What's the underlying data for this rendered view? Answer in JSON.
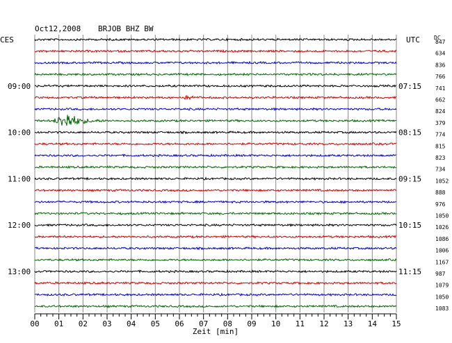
{
  "header": {
    "date": "Oct12,2008",
    "station": "BRJOB BHZ BW",
    "left_zone": "CES",
    "right_zone": "UTC",
    "dc_label": "DC"
  },
  "chart_data": {
    "type": "line",
    "title": "Oct12,2008   BRJOB BHZ BW",
    "xlabel": "Zeit [min]",
    "xlim": [
      0,
      15
    ],
    "x_ticks": [
      "00",
      "01",
      "02",
      "03",
      "04",
      "05",
      "06",
      "07",
      "08",
      "09",
      "10",
      "11",
      "12",
      "13",
      "14",
      "15"
    ],
    "trace_colors": [
      "#000000",
      "#cc0000",
      "#0000cc",
      "#006600"
    ],
    "trace_count": 24,
    "left_time_labels": [
      {
        "trace": 4,
        "label": "09:00"
      },
      {
        "trace": 8,
        "label": "10:00"
      },
      {
        "trace": 12,
        "label": "11:00"
      },
      {
        "trace": 16,
        "label": "12:00"
      },
      {
        "trace": 20,
        "label": "13:00"
      }
    ],
    "right_time_labels": [
      {
        "trace": 4,
        "label": "07:15"
      },
      {
        "trace": 8,
        "label": "08:15"
      },
      {
        "trace": 12,
        "label": "09:15"
      },
      {
        "trace": 16,
        "label": "10:15"
      },
      {
        "trace": 20,
        "label": "11:15"
      }
    ],
    "dc_values": [
      "847",
      "634",
      "836",
      "766",
      "741",
      "662",
      "824",
      "379",
      "774",
      "815",
      "823",
      "734",
      "1052",
      "888",
      "976",
      "1050",
      "1026",
      "1086",
      "1006",
      "1167",
      "987",
      "1079",
      "1050",
      "1083"
    ],
    "events": [
      {
        "trace": 7,
        "start_min": 0.7,
        "peak_min": 1.35,
        "end_min": 3.0,
        "description": "earthquake"
      },
      {
        "trace": 5,
        "start_min": 6.1,
        "peak_min": 6.4,
        "end_min": 6.8,
        "description": "small event"
      }
    ]
  }
}
